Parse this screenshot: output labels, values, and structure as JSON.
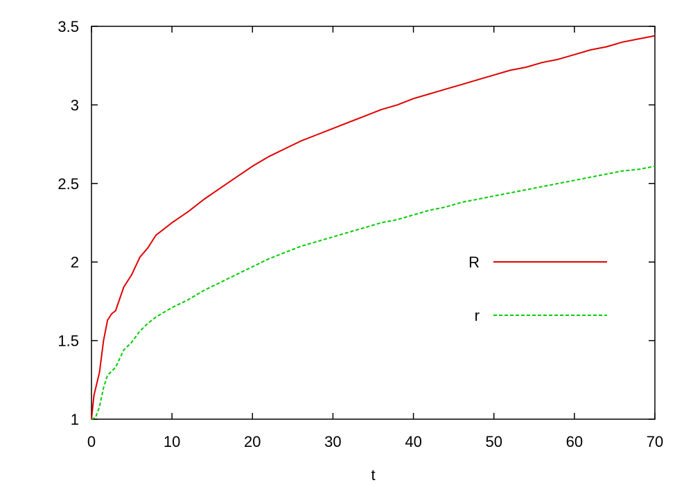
{
  "chart_data": {
    "type": "line",
    "xlabel": "t",
    "ylabel": "",
    "xlim": [
      0,
      70
    ],
    "ylim": [
      1,
      3.5
    ],
    "xticks": [
      0,
      10,
      20,
      30,
      40,
      50,
      60,
      70
    ],
    "yticks": [
      1,
      1.5,
      2,
      2.5,
      3,
      3.5
    ],
    "xtick_labels": [
      "0",
      "10",
      "20",
      "30",
      "40",
      "50",
      "60",
      "70"
    ],
    "ytick_labels": [
      "1",
      "1.5",
      "2",
      "2.5",
      "3",
      "3.5"
    ],
    "grid": false,
    "legend_position": "right",
    "series": [
      {
        "name": "R",
        "color": "#e00000",
        "style": "solid",
        "x": [
          0,
          0.3,
          1,
          1.5,
          2,
          2.5,
          3,
          4,
          5,
          6,
          7,
          8,
          9,
          10,
          12,
          14,
          16,
          18,
          20,
          22,
          24,
          26,
          28,
          30,
          32,
          34,
          36,
          38,
          40,
          42,
          44,
          46,
          48,
          50,
          52,
          54,
          56,
          58,
          60,
          62,
          64,
          66,
          68,
          70
        ],
        "y": [
          1.0,
          1.15,
          1.3,
          1.5,
          1.63,
          1.67,
          1.69,
          1.84,
          1.92,
          2.03,
          2.09,
          2.17,
          2.21,
          2.25,
          2.32,
          2.4,
          2.47,
          2.54,
          2.61,
          2.67,
          2.72,
          2.77,
          2.81,
          2.85,
          2.89,
          2.93,
          2.97,
          3.0,
          3.04,
          3.07,
          3.1,
          3.13,
          3.16,
          3.19,
          3.22,
          3.24,
          3.27,
          3.29,
          3.32,
          3.35,
          3.37,
          3.4,
          3.42,
          3.44
        ]
      },
      {
        "name": "r",
        "color": "#00cc00",
        "style": "dashed",
        "x": [
          0,
          0.5,
          1,
          1.5,
          2,
          3,
          4,
          5,
          6,
          7,
          8,
          9,
          10,
          12,
          14,
          16,
          18,
          20,
          22,
          24,
          26,
          28,
          30,
          32,
          34,
          36,
          38,
          40,
          42,
          44,
          46,
          48,
          50,
          52,
          54,
          56,
          58,
          60,
          62,
          64,
          66,
          68,
          70
        ],
        "y": [
          1.0,
          1.01,
          1.08,
          1.2,
          1.28,
          1.33,
          1.44,
          1.49,
          1.56,
          1.61,
          1.65,
          1.68,
          1.71,
          1.76,
          1.82,
          1.87,
          1.92,
          1.97,
          2.02,
          2.06,
          2.1,
          2.13,
          2.16,
          2.19,
          2.22,
          2.25,
          2.27,
          2.3,
          2.33,
          2.35,
          2.38,
          2.4,
          2.42,
          2.44,
          2.46,
          2.48,
          2.5,
          2.52,
          2.54,
          2.56,
          2.58,
          2.59,
          2.61
        ]
      }
    ]
  }
}
